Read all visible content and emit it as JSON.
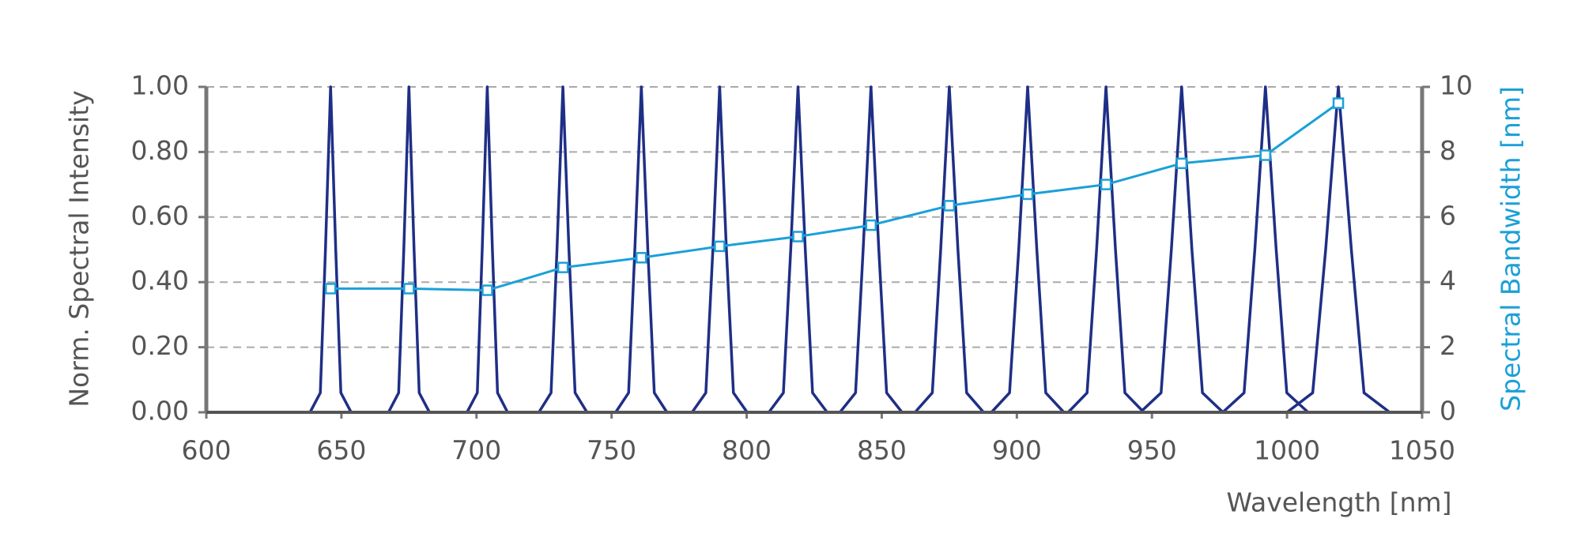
{
  "chart_data": {
    "type": "line",
    "xlabel": "Wavelength [nm]",
    "ylabel": "Norm. Spectral Intensity",
    "y2label": "Spectral Bandwidth [nm]",
    "xlim": [
      600,
      1050
    ],
    "xticks": [
      600,
      650,
      700,
      750,
      800,
      850,
      900,
      950,
      1000,
      1050
    ],
    "ylim": [
      0,
      1
    ],
    "yticks": [
      {
        "value": 0,
        "label": "0.00"
      },
      {
        "value": 0.2,
        "label": "0.20"
      },
      {
        "value": 0.4,
        "label": "0.40"
      },
      {
        "value": 0.6,
        "label": "0.60"
      },
      {
        "value": 0.8,
        "label": "0.80"
      },
      {
        "value": 1,
        "label": "1.00"
      }
    ],
    "y2lim": [
      0,
      10
    ],
    "y2ticks": [
      0,
      2,
      4,
      6,
      8,
      10
    ],
    "grid": true,
    "series": [
      {
        "color": "#1f2f86",
        "x": [
          638.4,
          642.2,
          644.1,
          646,
          647.9,
          649.8,
          653.6,
          null,
          667.4,
          671.2,
          673.1,
          675,
          676.9,
          678.8,
          682.6,
          null,
          696.5,
          700.3,
          702.1,
          704,
          705.9,
          707.8,
          711.5,
          null,
          723.1,
          727.6,
          729.8,
          732,
          734.2,
          736.5,
          740.9,
          null,
          751.5,
          756.3,
          758.6,
          761,
          763.4,
          765.8,
          770.5,
          null,
          779.8,
          784.9,
          787.5,
          790,
          792.5,
          795.1,
          800.2,
          null,
          808.2,
          813.6,
          816.3,
          819,
          821.7,
          824.4,
          829.8,
          null,
          834.5,
          840.3,
          843.1,
          846,
          848.9,
          851.8,
          857.5,
          null,
          862.3,
          868.7,
          871.8,
          875,
          878.2,
          881.4,
          887.7,
          null,
          890.6,
          897.3,
          900.7,
          904,
          907.4,
          910.7,
          917.4,
          null,
          919,
          926,
          929.5,
          933,
          936.5,
          940,
          947,
          null,
          945.7,
          953.4,
          957.2,
          961,
          964.8,
          968.7,
          976.3,
          null,
          976.2,
          984.1,
          988.1,
          992,
          996,
          999.9,
          1007.8,
          null,
          1000,
          1009.5,
          1014.3,
          1019,
          1023.8,
          1028.5,
          1038
        ],
        "values": [
          0,
          0.06,
          0.5,
          1,
          0.5,
          0.06,
          0,
          null,
          0,
          0.06,
          0.5,
          1,
          0.5,
          0.06,
          0,
          null,
          0,
          0.06,
          0.5,
          1,
          0.5,
          0.06,
          0,
          null,
          0,
          0.06,
          0.5,
          1,
          0.5,
          0.06,
          0,
          null,
          0,
          0.06,
          0.5,
          1,
          0.5,
          0.06,
          0,
          null,
          0,
          0.06,
          0.5,
          1,
          0.5,
          0.06,
          0,
          null,
          0,
          0.06,
          0.5,
          1,
          0.5,
          0.06,
          0,
          null,
          0,
          0.06,
          0.5,
          1,
          0.5,
          0.06,
          0,
          null,
          0,
          0.06,
          0.5,
          1,
          0.5,
          0.06,
          0,
          null,
          0,
          0.06,
          0.5,
          1,
          0.5,
          0.06,
          0,
          null,
          0,
          0.06,
          0.5,
          1,
          0.5,
          0.06,
          0,
          null,
          0,
          0.06,
          0.5,
          1,
          0.5,
          0.06,
          0,
          null,
          0,
          0.06,
          0.5,
          1,
          0.5,
          0.06,
          0,
          null,
          0,
          0.06,
          0.5,
          1,
          0.5,
          0.06,
          0
        ]
      },
      {
        "color": "#1ba0d8",
        "axis": "y2",
        "markers": true,
        "x": [
          646,
          675,
          704,
          732,
          761,
          790,
          819,
          846,
          875,
          904,
          933,
          961,
          992,
          1019
        ],
        "values": [
          3.8,
          3.8,
          3.75,
          4.45,
          4.75,
          5.1,
          5.4,
          5.75,
          6.35,
          6.7,
          7.0,
          7.65,
          7.9,
          9.5
        ]
      }
    ]
  }
}
